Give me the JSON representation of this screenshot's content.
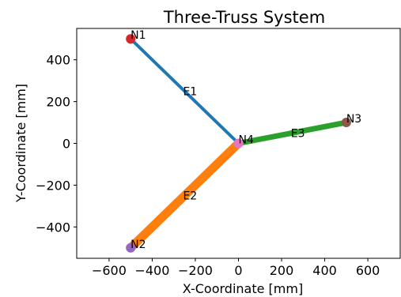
{
  "chart_data": {
    "type": "truss",
    "title": "Three-Truss System",
    "xlabel": "X-Coordinate [mm]",
    "ylabel": "Y-Coordinate [mm]",
    "xlim": [
      -750,
      750
    ],
    "ylim": [
      -550,
      550
    ],
    "xticks": [
      -600,
      -400,
      -200,
      0,
      200,
      400,
      600
    ],
    "yticks": [
      -400,
      -200,
      0,
      200,
      400
    ],
    "xtick_labels": [
      "−600",
      "−400",
      "−200",
      "0",
      "200",
      "400",
      "600"
    ],
    "ytick_labels": [
      "−400",
      "−200",
      "0",
      "200",
      "400"
    ],
    "grid": false,
    "nodes": [
      {
        "name": "N1",
        "x": -500,
        "y": 500,
        "color": "#d62728"
      },
      {
        "name": "N2",
        "x": -500,
        "y": -500,
        "color": "#9467bd"
      },
      {
        "name": "N3",
        "x": 500,
        "y": 100,
        "color": "#8c564b"
      },
      {
        "name": "N4",
        "x": 0,
        "y": 0,
        "color": "#e377c2"
      }
    ],
    "elements": [
      {
        "name": "E1",
        "from": "N1",
        "to": "N4",
        "color": "#1f77b4",
        "width": 4
      },
      {
        "name": "E2",
        "from": "N2",
        "to": "N4",
        "color": "#ff7f0e",
        "width": 11
      },
      {
        "name": "E3",
        "from": "N3",
        "to": "N4",
        "color": "#2ca02c",
        "width": 7
      }
    ]
  }
}
